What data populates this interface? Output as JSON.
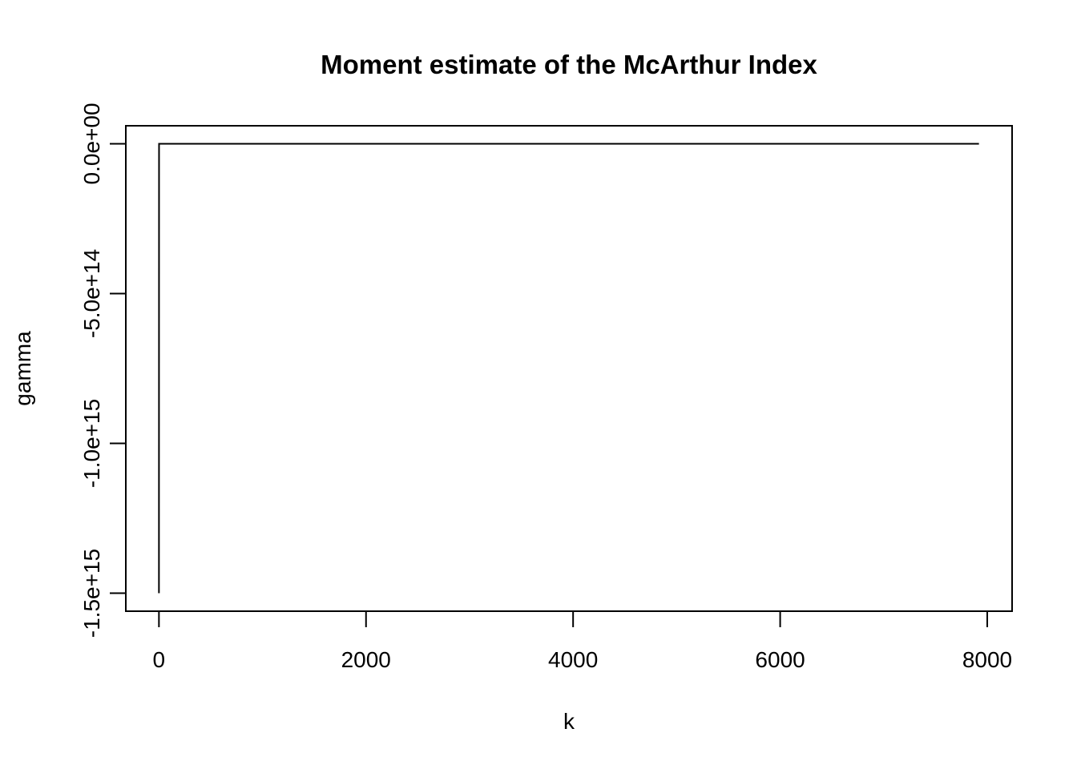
{
  "chart_data": {
    "type": "line",
    "title": "Moment estimate of the McArthur Index",
    "xlabel": "k",
    "ylabel": "gamma",
    "xlim": [
      -320,
      8240
    ],
    "ylim": [
      -1560000000000000.0,
      60000000000000.0
    ],
    "x_ticks": [
      0,
      2000,
      4000,
      6000,
      8000
    ],
    "x_tick_labels": [
      "0",
      "2000",
      "4000",
      "6000",
      "8000"
    ],
    "y_ticks": [
      0,
      -500000000000000.0,
      -1000000000000000.0,
      -1500000000000000.0
    ],
    "y_tick_labels": [
      "0.0e+00",
      "-5.0e+14",
      "-1.0e+15",
      "-1.5e+15"
    ],
    "grid": false,
    "legend": "none",
    "series": [
      {
        "x": [
          0,
          1,
          2,
          7920
        ],
        "y": [
          -1500000000000000.0,
          0,
          0,
          0
        ]
      }
    ],
    "line_color": "#000000"
  }
}
